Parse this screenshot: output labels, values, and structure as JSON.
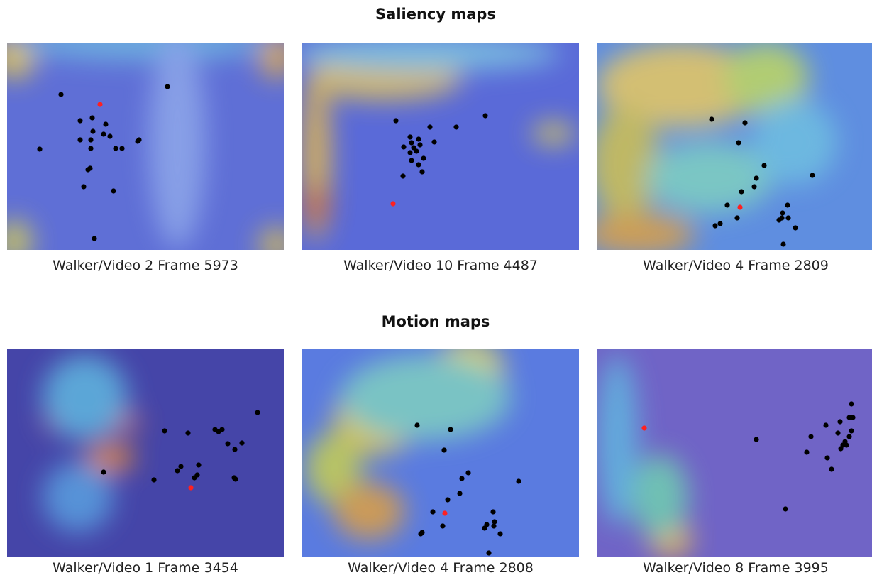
{
  "sections": [
    {
      "title": "Saliency maps",
      "panels": [
        {
          "caption": "Walker/Video 2 Frame 5973"
        },
        {
          "caption": "Walker/Video 10 Frame 4487"
        },
        {
          "caption": "Walker/Video 4 Frame 2809"
        }
      ]
    },
    {
      "title": "Motion maps",
      "panels": [
        {
          "caption": "Walker/Video 1 Frame 3454"
        },
        {
          "caption": "Walker/Video 4 Frame 2808"
        },
        {
          "caption": "Walker/Video 8 Frame 3995"
        }
      ]
    }
  ]
}
